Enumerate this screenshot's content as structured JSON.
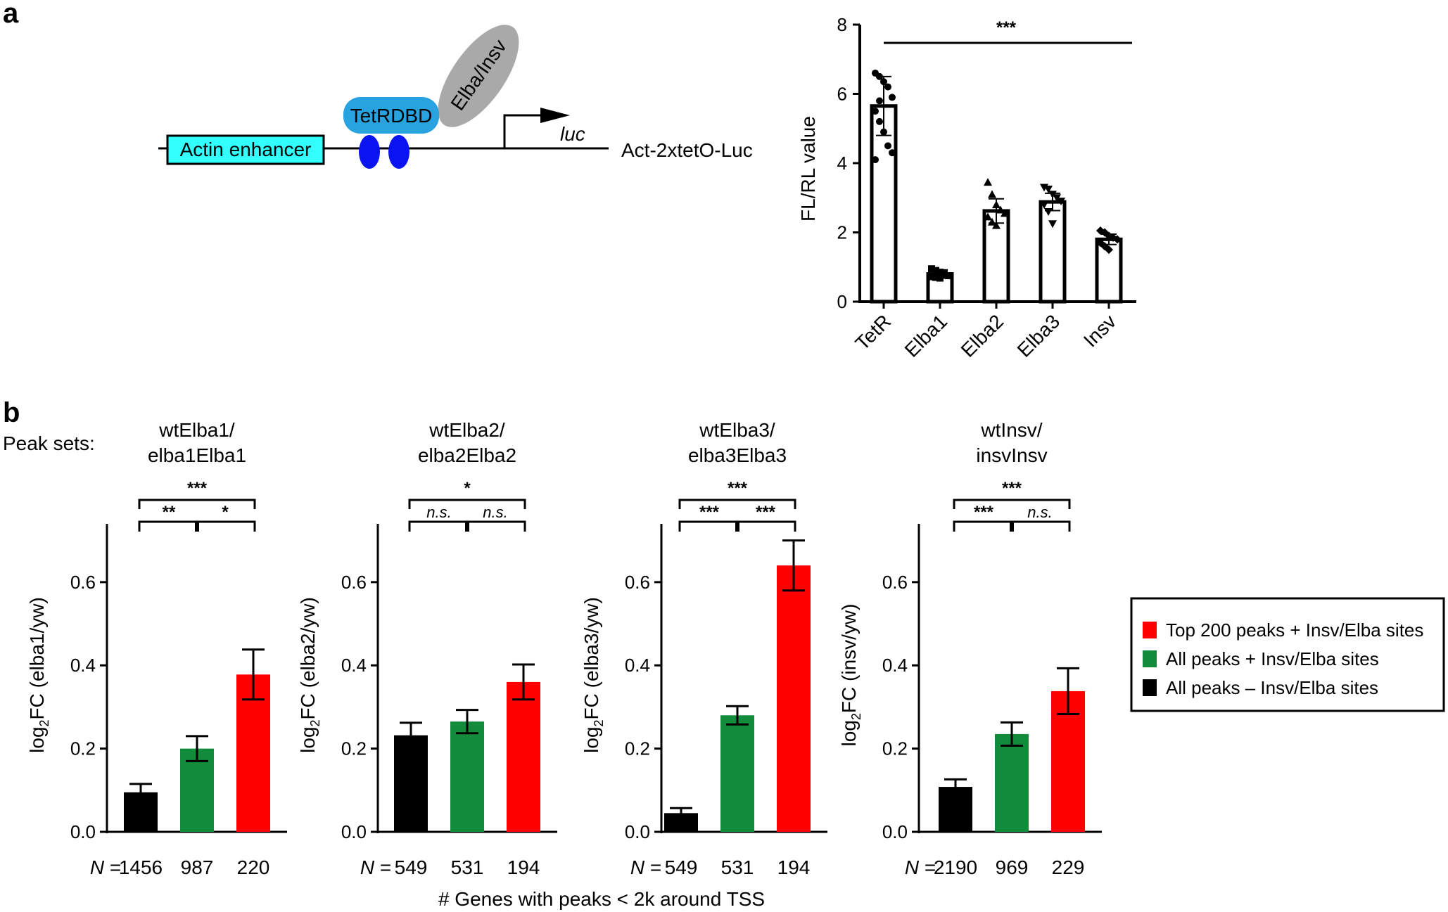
{
  "panel_a": {
    "letter": "a",
    "diagram": {
      "enhancer_label": "Actin enhancer",
      "dbd_label": "TetRDBD",
      "fusion_label": "Elba/Insv",
      "gene_label": "luc",
      "construct_label": "Act-2xtetO-Luc",
      "colors": {
        "enhancer": "#33ffff",
        "dbd": "#29a3e0",
        "operator": "#0a14f0",
        "fusion": "#a9a9a9"
      }
    }
  },
  "panel_b": {
    "letter": "b",
    "peak_sets_label": "Peak sets:",
    "x_axis_title": "# Genes with peaks < 2k around TSS",
    "n_prefix": "N =",
    "legend": [
      {
        "label": "Top 200 peaks + Insv/Elba sites",
        "color": "#ff0000"
      },
      {
        "label": "All peaks + Insv/Elba sites",
        "color": "#128b3a"
      },
      {
        "label": "All peaks – Insv/Elba sites",
        "color": "#000000"
      }
    ]
  },
  "chart_data": [
    {
      "type": "bar",
      "id": "a-reporter",
      "title": "",
      "categories": [
        "TetR",
        "Elba1",
        "Elba2",
        "Elba3",
        "Insv"
      ],
      "values": [
        5.65,
        0.8,
        2.62,
        2.88,
        1.8
      ],
      "errors": [
        0.85,
        0.12,
        0.35,
        0.25,
        0.15
      ],
      "points": [
        [
          6.6,
          6.5,
          6.35,
          6.2,
          5.9,
          5.5,
          5.2,
          4.9,
          4.5,
          4.3,
          4.1,
          5.8
        ],
        [
          0.95,
          0.9,
          0.85,
          0.8,
          0.75,
          0.72,
          0.7,
          0.68
        ],
        [
          3.45,
          3.1,
          2.8,
          2.65,
          2.55,
          2.45,
          2.3,
          2.2
        ],
        [
          3.3,
          3.25,
          3.1,
          3.0,
          2.9,
          2.8,
          2.6,
          2.25
        ],
        [
          2.05,
          2.0,
          1.9,
          1.85,
          1.8,
          1.7,
          1.6,
          1.5
        ]
      ],
      "point_markers": [
        "circle",
        "square",
        "triangle-up",
        "triangle-down",
        "diamond"
      ],
      "ylabel": "FL/RL value",
      "xlabel": "",
      "ylim": [
        0,
        8
      ],
      "yticks": [
        0,
        2,
        4,
        6,
        8
      ],
      "significance": "***"
    },
    {
      "type": "bar",
      "id": "b1",
      "title_lines": [
        "wtElba1/",
        "elba1Elba1"
      ],
      "ylabel_main": "log",
      "ylabel_sub": "2",
      "ylabel_rest": "FC (elba1/yw)",
      "categories": [
        "All peaks – Insv/Elba sites",
        "All peaks + Insv/Elba sites",
        "Top 200 peaks + Insv/Elba sites"
      ],
      "values": [
        0.095,
        0.2,
        0.378
      ],
      "errors": [
        0.02,
        0.03,
        0.06
      ],
      "n_values": [
        "1456",
        "987",
        "220"
      ],
      "ylim": [
        0,
        0.74
      ],
      "yticks": [
        "0.0",
        "0.2",
        "0.4",
        "0.6"
      ],
      "sig_left": "**",
      "sig_right": "*",
      "sig_top": "***"
    },
    {
      "type": "bar",
      "id": "b2",
      "title_lines": [
        "wtElba2/",
        "elba2Elba2"
      ],
      "ylabel_main": "log",
      "ylabel_sub": "2",
      "ylabel_rest": "FC (elba2/yw)",
      "categories": [
        "All peaks – Insv/Elba sites",
        "All peaks + Insv/Elba sites",
        "Top 200 peaks + Insv/Elba sites"
      ],
      "values": [
        0.232,
        0.265,
        0.36
      ],
      "errors": [
        0.03,
        0.028,
        0.042
      ],
      "n_values": [
        "549",
        "531",
        "194"
      ],
      "ylim": [
        0,
        0.74
      ],
      "yticks": [
        "0.0",
        "0.2",
        "0.4",
        "0.6"
      ],
      "sig_left": "n.s.",
      "sig_right": "n.s.",
      "sig_top": "*"
    },
    {
      "type": "bar",
      "id": "b3",
      "title_lines": [
        "wtElba3/",
        "elba3Elba3"
      ],
      "ylabel_main": "log",
      "ylabel_sub": "2",
      "ylabel_rest": "FC (elba3/yw)",
      "categories": [
        "All peaks – Insv/Elba sites",
        "All peaks + Insv/Elba sites",
        "Top 200 peaks + Insv/Elba sites"
      ],
      "values": [
        0.045,
        0.28,
        0.64
      ],
      "errors": [
        0.012,
        0.022,
        0.06
      ],
      "n_values": [
        "549",
        "531",
        "194"
      ],
      "ylim": [
        0,
        0.74
      ],
      "yticks": [
        "0.0",
        "0.2",
        "0.4",
        "0.6"
      ],
      "sig_left": "***",
      "sig_right": "***",
      "sig_top": "***"
    },
    {
      "type": "bar",
      "id": "b4",
      "title_lines": [
        "wtInsv/",
        "insvInsv"
      ],
      "ylabel_main": "log",
      "ylabel_sub": "2",
      "ylabel_rest": "FC (insv/yw)",
      "categories": [
        "All peaks – Insv/Elba sites",
        "All peaks + Insv/Elba sites",
        "Top 200 peaks + Insv/Elba sites"
      ],
      "values": [
        0.108,
        0.235,
        0.338
      ],
      "errors": [
        0.018,
        0.028,
        0.055
      ],
      "n_values": [
        "2190",
        "969",
        "229"
      ],
      "ylim": [
        0,
        0.74
      ],
      "yticks": [
        "0.0",
        "0.2",
        "0.4",
        "0.6"
      ],
      "sig_left": "***",
      "sig_right": "n.s.",
      "sig_top": "***"
    }
  ]
}
